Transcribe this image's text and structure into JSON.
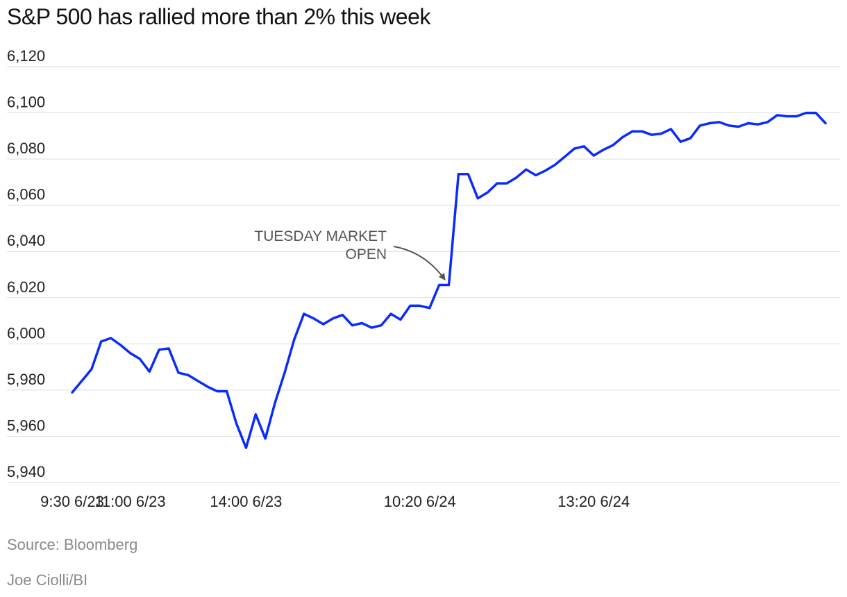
{
  "chart_data": {
    "type": "line",
    "title": "S&P 500 has rallied more than 2% this week",
    "xlabel": "",
    "ylabel": "",
    "ylim": [
      5940,
      6120
    ],
    "yticks": [
      5940,
      5960,
      5980,
      6000,
      6020,
      6040,
      6060,
      6080,
      6100,
      6120
    ],
    "ytick_labels": [
      "5,940",
      "5,960",
      "5,980",
      "6,000",
      "6,020",
      "6,040",
      "6,060",
      "6,080",
      "6,100",
      "6,120"
    ],
    "xtick_labels": [
      {
        "index": 0,
        "label": "9:30 6/23"
      },
      {
        "index": 6,
        "label": "11:00 6/23"
      },
      {
        "index": 18,
        "label": "14:00 6/23"
      },
      {
        "index": 36,
        "label": "10:20 6/24"
      },
      {
        "index": 54,
        "label": "13:20 6/24"
      }
    ],
    "grid": true,
    "line_color": "#0a2bff",
    "series": [
      {
        "values": [
          5979,
          5984,
          5989,
          6001,
          6002.5,
          5999.5,
          5996,
          5993.5,
          5988,
          5997.5,
          5998,
          5987.5,
          5986.5,
          5984,
          5981.5,
          5979.5,
          5979.5,
          5965.5,
          5955,
          5969.5,
          5959,
          5974.5,
          5987.5,
          6002,
          6013,
          6011,
          6008.5,
          6011,
          6012.5,
          6008,
          6009,
          6007,
          6008,
          6013,
          6010.5,
          6016.5,
          6016.5,
          6015.5,
          6025.5,
          6025.5,
          6073.5,
          6073.5,
          6063,
          6065.5,
          6069.5,
          6069.5,
          6072,
          6075.5,
          6073,
          6075,
          6077.5,
          6081,
          6084.5,
          6085.5,
          6081.5,
          6084,
          6086,
          6089.5,
          6092,
          6092,
          6090.5,
          6091,
          6093,
          6087.5,
          6089,
          6094.5,
          6095.5,
          6096,
          6094.5,
          6094,
          6095.5,
          6095,
          6096,
          6099,
          6098.5,
          6098.5,
          6100,
          6100,
          6095.5
        ]
      }
    ],
    "annotations": [
      {
        "lines": [
          "TUESDAY MARKET",
          "OPEN"
        ],
        "target_index": 39
      }
    ]
  },
  "footer": {
    "source": "Source: Bloomberg",
    "credit": "Joe Ciolli/BI"
  }
}
